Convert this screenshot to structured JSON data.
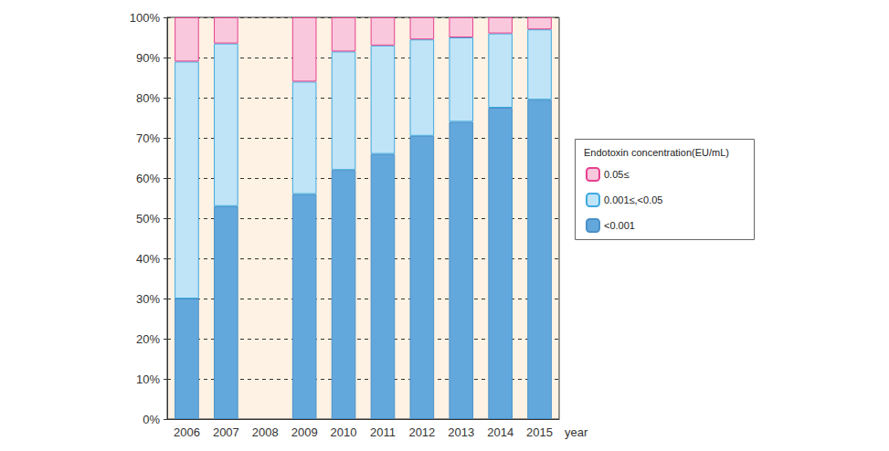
{
  "chart_data": {
    "type": "bar",
    "stacked": true,
    "grid": true,
    "legend": "right",
    "legend_title": "Endotoxin concentration(EU/mL)",
    "x_label": "year",
    "categories": [
      "2006",
      "2007",
      "2008",
      "2009",
      "2010",
      "2011",
      "2012",
      "2013",
      "2014",
      "2015"
    ],
    "series": [
      {
        "name": "<0.001",
        "color": "#62a8dc",
        "values": [
          30,
          53,
          null,
          56,
          62,
          66,
          70.5,
          74,
          77.5,
          79.5
        ]
      },
      {
        "name": "0.001≤,<0.05",
        "color": "#bfe4f7",
        "values": [
          59,
          40.5,
          null,
          28,
          29.5,
          27,
          24,
          21,
          18.5,
          17.5
        ]
      },
      {
        "name": "0.05≤",
        "color": "#f9c8dd",
        "values": [
          11,
          6.5,
          null,
          16,
          8.5,
          7,
          5.5,
          5,
          4,
          3
        ]
      }
    ],
    "ylim": [
      0,
      100
    ],
    "yticks": [
      {
        "value": 0,
        "label": "0%"
      },
      {
        "value": 10,
        "label": "10%"
      },
      {
        "value": 20,
        "label": "20%"
      },
      {
        "value": 30,
        "label": "30%"
      },
      {
        "value": 40,
        "label": "40%"
      },
      {
        "value": 50,
        "label": "50%"
      },
      {
        "value": 60,
        "label": "60%"
      },
      {
        "value": 70,
        "label": "70%"
      },
      {
        "value": 80,
        "label": "80%"
      },
      {
        "value": 90,
        "label": "90%"
      },
      {
        "value": 100,
        "label": "100%"
      }
    ]
  }
}
